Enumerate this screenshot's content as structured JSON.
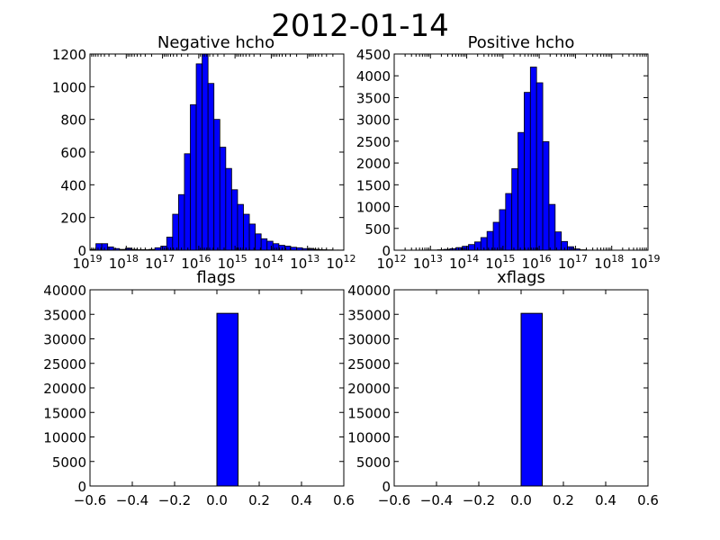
{
  "figure": {
    "title": "2012-01-14"
  },
  "chart_data": [
    {
      "type": "bar",
      "title": "Negative hcho",
      "xscale": "log",
      "xreversed": true,
      "xlim": [
        1e+19,
        1000000000000.0
      ],
      "ylim": [
        0,
        1200
      ],
      "yticks": [
        "0",
        "200",
        "400",
        "600",
        "800",
        "1000",
        "1200"
      ],
      "xticks": [
        {
          "base": "10",
          "exp": "19"
        },
        {
          "base": "10",
          "exp": "18"
        },
        {
          "base": "10",
          "exp": "17"
        },
        {
          "base": "10",
          "exp": "16"
        },
        {
          "base": "10",
          "exp": "15"
        },
        {
          "base": "10",
          "exp": "14"
        },
        {
          "base": "10",
          "exp": "13"
        },
        {
          "base": "10",
          "exp": "12"
        }
      ],
      "bin_log_range": [
        19,
        12
      ],
      "values": [
        5,
        40,
        40,
        20,
        10,
        5,
        12,
        5,
        3,
        3,
        5,
        15,
        25,
        80,
        220,
        340,
        590,
        890,
        1140,
        1200,
        1020,
        800,
        630,
        500,
        370,
        280,
        220,
        160,
        100,
        70,
        55,
        40,
        30,
        25,
        18,
        15,
        10,
        8,
        5,
        3,
        2,
        1,
        1
      ],
      "bar_color": "#0000ff"
    },
    {
      "type": "bar",
      "title": "Positive hcho",
      "xscale": "log",
      "xlim": [
        1000000000000.0,
        1e+19
      ],
      "ylim": [
        0,
        4500
      ],
      "yticks": [
        "0",
        "500",
        "1000",
        "1500",
        "2000",
        "2500",
        "3000",
        "3500",
        "4000",
        "4500"
      ],
      "xticks": [
        {
          "base": "10",
          "exp": "12"
        },
        {
          "base": "10",
          "exp": "13"
        },
        {
          "base": "10",
          "exp": "14"
        },
        {
          "base": "10",
          "exp": "15"
        },
        {
          "base": "10",
          "exp": "16"
        },
        {
          "base": "10",
          "exp": "17"
        },
        {
          "base": "10",
          "exp": "18"
        },
        {
          "base": "10",
          "exp": "19"
        }
      ],
      "bin_log_range": [
        12,
        19
      ],
      "values": [
        1,
        0,
        0,
        0,
        1,
        3,
        5,
        10,
        20,
        35,
        60,
        90,
        130,
        190,
        290,
        430,
        640,
        930,
        1300,
        1870,
        2700,
        3620,
        4200,
        3840,
        2490,
        1050,
        420,
        200,
        80,
        30,
        10,
        3,
        1,
        0,
        0,
        0,
        0,
        0,
        0,
        0,
        0
      ],
      "bar_color": "#0000ff"
    },
    {
      "type": "bar",
      "title": "flags",
      "xlim": [
        -0.6,
        0.6
      ],
      "ylim": [
        0,
        40000
      ],
      "yticks": [
        "0",
        "5000",
        "10000",
        "15000",
        "20000",
        "25000",
        "30000",
        "35000",
        "40000"
      ],
      "xticks": [
        "−0.6",
        "−0.4",
        "−0.2",
        "0.0",
        "0.2",
        "0.4",
        "0.6"
      ],
      "bin_edges": [
        -0.5,
        -0.4,
        -0.3,
        -0.2,
        -0.1,
        0.0,
        0.1,
        0.2,
        0.3,
        0.4,
        0.5
      ],
      "values": [
        0,
        0,
        0,
        0,
        0,
        35200,
        0,
        0,
        0,
        0
      ],
      "bar_color": "#0000ff"
    },
    {
      "type": "bar",
      "title": "xflags",
      "xlim": [
        -0.6,
        0.6
      ],
      "ylim": [
        0,
        40000
      ],
      "yticks": [
        "0",
        "5000",
        "10000",
        "15000",
        "20000",
        "25000",
        "30000",
        "35000",
        "40000"
      ],
      "xticks": [
        "−0.6",
        "−0.4",
        "−0.2",
        "0.0",
        "0.2",
        "0.4",
        "0.6"
      ],
      "bin_edges": [
        -0.5,
        -0.4,
        -0.3,
        -0.2,
        -0.1,
        0.0,
        0.1,
        0.2,
        0.3,
        0.4,
        0.5
      ],
      "values": [
        0,
        0,
        0,
        0,
        0,
        35200,
        0,
        0,
        0,
        0
      ],
      "bar_color": "#0000ff"
    }
  ]
}
